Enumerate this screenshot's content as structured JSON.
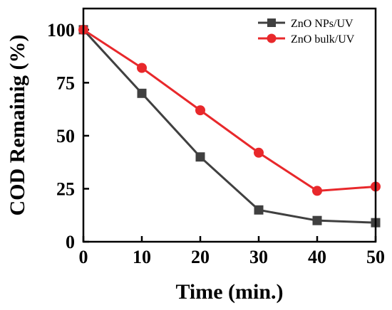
{
  "chart_data": {
    "type": "line",
    "xlabel": "Time (min.)",
    "ylabel": "COD Remainig (%)",
    "xlim": [
      0,
      50
    ],
    "ylim": [
      0,
      110
    ],
    "x_ticks": [
      0,
      10,
      20,
      30,
      40,
      50
    ],
    "y_ticks": [
      0,
      25,
      50,
      75,
      100
    ],
    "grid": false,
    "legend_position": "top-right",
    "x": [
      0,
      10,
      20,
      30,
      40,
      50
    ],
    "series": [
      {
        "name": "ZnO NPs/UV",
        "values": [
          100,
          70,
          40,
          15,
          10,
          9
        ],
        "color": "#404040",
        "marker": "square"
      },
      {
        "name": "ZnO bulk/UV",
        "values": [
          100,
          82,
          62,
          42,
          24,
          26
        ],
        "color": "#e8282b",
        "marker": "circle"
      }
    ]
  }
}
